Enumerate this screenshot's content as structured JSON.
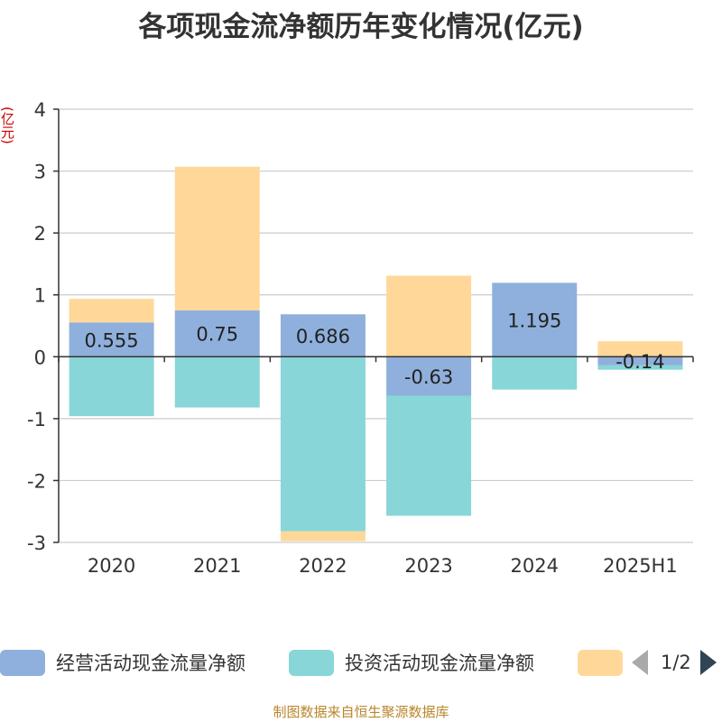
{
  "title": "各项现金流净额历年变化情况(亿元)",
  "unit_label": "(亿元)",
  "source": "制图数据来自恒生聚源数据库",
  "legend": {
    "page_text": "1/2"
  },
  "colors": {
    "operating": "#8fb0dc",
    "investing": "#88d6d8",
    "financing": "#ffd899",
    "grid": "#cccccc",
    "axis": "#333333"
  },
  "chart_data": {
    "type": "bar",
    "stacked": true,
    "title": "各项现金流净额历年变化情况(亿元)",
    "ylabel": "(亿元)",
    "categories": [
      "2020",
      "2021",
      "2022",
      "2023",
      "2024",
      "2025H1"
    ],
    "y_ticks": [
      "4",
      "3",
      "2",
      "1",
      "0",
      "-1",
      "-2",
      "-3"
    ],
    "ylim": [
      -3,
      4
    ],
    "grid": true,
    "legend_position": "bottom",
    "series": [
      {
        "name": "经营活动现金流量净额",
        "values": [
          0.555,
          0.75,
          0.686,
          -0.63,
          1.195,
          -0.14
        ],
        "labels": [
          "0.555",
          "0.75",
          "0.686",
          "-0.63",
          "1.195",
          "-0.14"
        ]
      },
      {
        "name": "投资活动现金流量净额",
        "values": [
          -0.96,
          -0.82,
          -2.82,
          -1.94,
          -0.53,
          -0.07
        ]
      },
      {
        "name": "",
        "values": [
          0.38,
          2.32,
          -0.16,
          1.31,
          0.0,
          0.25
        ]
      }
    ]
  }
}
